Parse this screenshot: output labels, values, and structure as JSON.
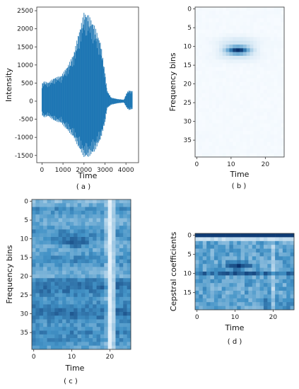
{
  "colors": {
    "series": "#1f77b4",
    "cmap_low": "#f7fbff",
    "cmap_high": "#08306b"
  },
  "chart_data": [
    {
      "type": "line",
      "panel": "a",
      "caption": "( a )",
      "xlabel": "Time",
      "ylabel": "Intensity",
      "xlim": [
        -250,
        4600
      ],
      "ylim": [
        -1700,
        2600
      ],
      "xticks": [
        0,
        1000,
        2000,
        3000,
        4000
      ],
      "yticks": [
        -1500,
        -1000,
        -500,
        0,
        500,
        1000,
        1500,
        2000,
        2500
      ],
      "envelope": {
        "x": [
          0,
          100,
          300,
          600,
          900,
          1200,
          1500,
          1800,
          2000,
          2200,
          2500,
          2800,
          3000,
          3100,
          3300,
          3600,
          3900,
          4050,
          4150,
          4300
        ],
        "upper": [
          500,
          550,
          520,
          650,
          700,
          950,
          1300,
          2000,
          2450,
          2400,
          2100,
          1600,
          800,
          300,
          100,
          60,
          40,
          250,
          300,
          280
        ],
        "lower": [
          -400,
          -450,
          -420,
          -550,
          -600,
          -800,
          -1000,
          -1350,
          -1550,
          -1550,
          -1400,
          -1050,
          -600,
          -200,
          -100,
          -60,
          -40,
          -200,
          -250,
          -220
        ]
      }
    },
    {
      "type": "heatmap",
      "panel": "b",
      "caption": "( b )",
      "xlabel": "Time",
      "ylabel": "Frequency bins",
      "cols": 26,
      "rows": 40,
      "xticks": [
        0,
        10,
        20
      ],
      "yticks": [
        0,
        5,
        10,
        15,
        20,
        25,
        30,
        35
      ]
    },
    {
      "type": "heatmap",
      "panel": "c",
      "caption": "( c )",
      "xlabel": "Time",
      "ylabel": "Frequency bins",
      "cols": 26,
      "rows": 40,
      "xticks": [
        0,
        10,
        20
      ],
      "yticks": [
        0,
        5,
        10,
        15,
        20,
        25,
        30,
        35
      ]
    },
    {
      "type": "heatmap",
      "panel": "d",
      "caption": "( d )",
      "xlabel": "Time",
      "ylabel": "Cepstral coefficients",
      "cols": 26,
      "rows": 20,
      "xticks": [
        0,
        10,
        20
      ],
      "yticks": [
        0,
        5,
        10,
        15
      ]
    }
  ]
}
